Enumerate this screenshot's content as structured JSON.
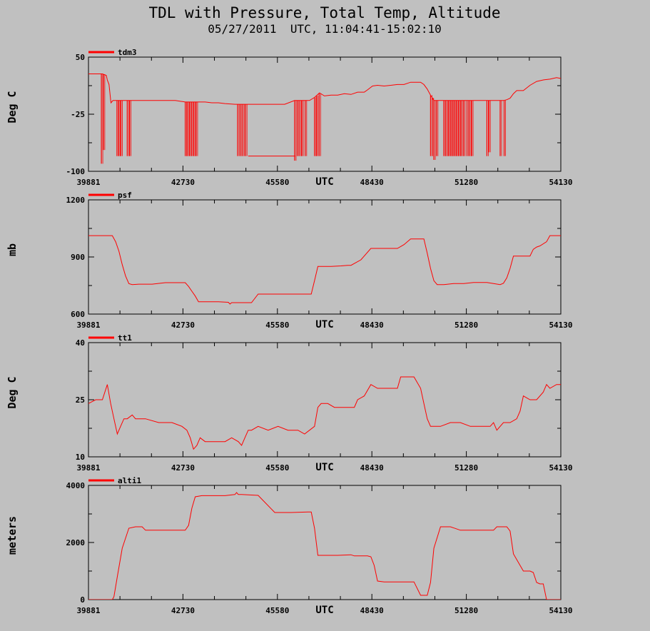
{
  "figure": {
    "title": "TDL with Pressure, Total Temp, Altitude",
    "subtitle": "05/27/2011  UTC, 11:04:41-15:02:10"
  },
  "chart_data": [
    {
      "type": "line",
      "series": [
        {
          "name": "tdm3",
          "color": "#ff0000",
          "x": [
            39881,
            40190,
            40300,
            40420,
            40450,
            40500,
            40560,
            40620,
            40700,
            40800,
            41000,
            41300,
            41600,
            41900,
            42200,
            42500,
            42800,
            43100,
            43400,
            43600,
            43800,
            44000,
            44300,
            44600,
            44900,
            45200,
            45500,
            45800,
            46100,
            46400,
            46550,
            46700,
            46850,
            47000,
            47200,
            47400,
            47600,
            47800,
            48000,
            48200,
            48300,
            48450,
            48600,
            48800,
            49000,
            49200,
            49400,
            49600,
            49900,
            50000,
            50100,
            50200,
            50300,
            50400,
            50600,
            50900,
            51200,
            51500,
            51800,
            52000,
            52100,
            52300,
            52400,
            52500,
            52600,
            52700,
            52800,
            53000,
            53200,
            53400,
            53600,
            53800,
            54000,
            54130
          ],
          "y": [
            28,
            28,
            28,
            26,
            20,
            14,
            -10,
            -7,
            -7,
            -7,
            -7,
            -7,
            -7,
            -7,
            -7,
            -7,
            -9,
            -9,
            -9,
            -10,
            -10,
            -11,
            -12,
            -12,
            -12,
            -12,
            -12,
            -12,
            -7,
            -7,
            -7,
            -3,
            3,
            -1,
            0,
            0,
            2,
            1,
            4,
            4,
            7,
            12,
            13,
            12,
            13,
            14,
            14,
            17,
            17,
            14,
            8,
            0,
            -7,
            -7,
            -7,
            -7,
            -7,
            -7,
            -7,
            -7,
            -7,
            -7,
            -7,
            -6,
            -4,
            2,
            6,
            6,
            13,
            18,
            20,
            21,
            23,
            22
          ]
        }
      ],
      "spikes": [
        {
          "x": 40270,
          "y": -90
        },
        {
          "x": 40330,
          "y": -72
        },
        {
          "x": 40740,
          "y": -80
        },
        {
          "x": 40800,
          "y": -80
        },
        {
          "x": 40860,
          "y": -80
        },
        {
          "x": 41050,
          "y": -80
        },
        {
          "x": 41120,
          "y": -80
        },
        {
          "x": 42800,
          "y": -80
        },
        {
          "x": 42860,
          "y": -80
        },
        {
          "x": 42930,
          "y": -80
        },
        {
          "x": 43000,
          "y": -80
        },
        {
          "x": 43060,
          "y": -80
        },
        {
          "x": 43130,
          "y": -80
        },
        {
          "x": 44380,
          "y": -80
        },
        {
          "x": 44460,
          "y": -80
        },
        {
          "x": 44540,
          "y": -80
        },
        {
          "x": 44620,
          "y": -80
        },
        {
          "x": 46100,
          "y": -86
        },
        {
          "x": 46180,
          "y": -80
        },
        {
          "x": 46260,
          "y": -80
        },
        {
          "x": 46320,
          "y": -80
        },
        {
          "x": 46420,
          "y": -80
        },
        {
          "x": 46700,
          "y": -80
        },
        {
          "x": 46760,
          "y": -80
        },
        {
          "x": 46840,
          "y": -80
        },
        {
          "x": 50200,
          "y": -80
        },
        {
          "x": 50250,
          "y": -80
        },
        {
          "x": 50300,
          "y": -85
        },
        {
          "x": 50380,
          "y": -80
        },
        {
          "x": 50600,
          "y": -80
        },
        {
          "x": 50650,
          "y": -80
        },
        {
          "x": 50700,
          "y": -80
        },
        {
          "x": 50760,
          "y": -80
        },
        {
          "x": 50820,
          "y": -80
        },
        {
          "x": 50880,
          "y": -80
        },
        {
          "x": 50940,
          "y": -80
        },
        {
          "x": 51000,
          "y": -80
        },
        {
          "x": 51060,
          "y": -80
        },
        {
          "x": 51120,
          "y": -80
        },
        {
          "x": 51200,
          "y": -80
        },
        {
          "x": 51300,
          "y": -80
        },
        {
          "x": 51380,
          "y": -80
        },
        {
          "x": 51440,
          "y": -80
        },
        {
          "x": 51900,
          "y": -80
        },
        {
          "x": 51960,
          "y": -75
        },
        {
          "x": 52300,
          "y": -80
        },
        {
          "x": 52420,
          "y": -80
        }
      ],
      "baseline": [
        {
          "x0": 44700,
          "x1": 46120,
          "y": -80
        }
      ],
      "ylabel": "Deg C",
      "xlabel": "UTC",
      "ylim": [
        -100,
        50
      ],
      "yticks": [
        "50",
        "-25",
        "-100"
      ],
      "xlim": [
        39881,
        54130
      ],
      "xticks": [
        "39881",
        "42730",
        "45580",
        "48430",
        "51280",
        "54130"
      ],
      "legend_placement": "top-left",
      "grid": false
    },
    {
      "type": "line",
      "series": [
        {
          "name": "psf",
          "color": "#ff0000",
          "x": [
            39881,
            40600,
            40700,
            40800,
            40900,
            41000,
            41100,
            41200,
            41400,
            41800,
            42200,
            42600,
            42800,
            42900,
            43000,
            43100,
            43200,
            43500,
            43800,
            44100,
            44150,
            44200,
            44500,
            44800,
            45000,
            45200,
            45500,
            45800,
            46200,
            46500,
            46600,
            46700,
            46800,
            46900,
            47200,
            47500,
            47700,
            47800,
            48100,
            48400,
            48500,
            48600,
            48800,
            49200,
            49400,
            49600,
            49700,
            50000,
            50100,
            50200,
            50300,
            50400,
            50600,
            50900,
            51200,
            51500,
            51800,
            51900,
            52100,
            52300,
            52400,
            52500,
            52600,
            52700,
            53200,
            53300,
            53400,
            53500,
            53700,
            53800,
            54130
          ],
          "y": [
            1012,
            1012,
            980,
            930,
            860,
            800,
            760,
            755,
            757,
            757,
            765,
            765,
            765,
            745,
            720,
            695,
            665,
            665,
            665,
            662,
            653,
            660,
            660,
            660,
            705,
            705,
            705,
            705,
            705,
            705,
            705,
            775,
            850,
            850,
            850,
            853,
            856,
            856,
            885,
            945,
            945,
            945,
            945,
            945,
            965,
            995,
            995,
            995,
            920,
            840,
            775,
            755,
            755,
            760,
            760,
            766,
            766,
            766,
            760,
            755,
            762,
            790,
            840,
            905,
            905,
            940,
            952,
            958,
            980,
            1012,
            1012
          ]
        }
      ],
      "ylabel": "mb",
      "xlabel": "UTC",
      "ylim": [
        600,
        1200
      ],
      "yticks": [
        "1200",
        "900",
        "600"
      ],
      "xlim": [
        39881,
        54130
      ],
      "xticks": [
        "39881",
        "42730",
        "45580",
        "48430",
        "51280",
        "54130"
      ],
      "legend_placement": "top-left",
      "grid": false
    },
    {
      "type": "line",
      "series": [
        {
          "name": "tt1",
          "color": "#ff0000",
          "x": [
            39881,
            40100,
            40300,
            40450,
            40550,
            40650,
            40750,
            40850,
            40950,
            41050,
            41200,
            41300,
            41400,
            41600,
            42000,
            42400,
            42700,
            42850,
            42950,
            43050,
            43150,
            43250,
            43400,
            43600,
            43800,
            44000,
            44200,
            44400,
            44500,
            44600,
            44700,
            44800,
            45000,
            45300,
            45600,
            45900,
            46200,
            46400,
            46700,
            46800,
            46900,
            47100,
            47300,
            47600,
            47900,
            48000,
            48200,
            48400,
            48600,
            48800,
            49000,
            49200,
            49300,
            49500,
            49700,
            49900,
            50000,
            50100,
            50200,
            50300,
            50500,
            50800,
            51100,
            51400,
            51700,
            52000,
            52100,
            52200,
            52400,
            52600,
            52800,
            52900,
            53000,
            53200,
            53400,
            53600,
            53700,
            53800,
            54000,
            54130
          ],
          "y": [
            24,
            25,
            25,
            29,
            24,
            20,
            16,
            18,
            20,
            20,
            21,
            20,
            20,
            20,
            19,
            19,
            18,
            17,
            15,
            12,
            13,
            15,
            14,
            14,
            14,
            14,
            15,
            14,
            13,
            15,
            17,
            17,
            18,
            17,
            18,
            17,
            17,
            16,
            18,
            23,
            24,
            24,
            23,
            23,
            23,
            25,
            26,
            29,
            28,
            28,
            28,
            28,
            31,
            31,
            31,
            28,
            24,
            20,
            18,
            18,
            18,
            19,
            19,
            18,
            18,
            18,
            19,
            17,
            19,
            19,
            20,
            22,
            26,
            25,
            25,
            27,
            29,
            28,
            29,
            29
          ]
        }
      ],
      "ylabel": "Deg C",
      "xlabel": "UTC",
      "ylim": [
        10,
        40
      ],
      "yticks": [
        "40",
        "25",
        "10"
      ],
      "xlim": [
        39881,
        54130
      ],
      "xticks": [
        "39881",
        "42730",
        "45580",
        "48430",
        "51280",
        "54130"
      ],
      "legend_placement": "top-left",
      "grid": false
    },
    {
      "type": "line",
      "series": [
        {
          "name": "alti1",
          "color": "#ff0000",
          "x": [
            39881,
            40600,
            40650,
            40750,
            40900,
            41100,
            41300,
            41500,
            41600,
            41900,
            42400,
            42800,
            42900,
            43000,
            43100,
            43300,
            43600,
            44000,
            44300,
            44350,
            44400,
            44500,
            45000,
            45500,
            46000,
            46500,
            46600,
            46700,
            46800,
            46900,
            47100,
            47400,
            47800,
            47900,
            47950,
            48000,
            48300,
            48400,
            48500,
            48600,
            48800,
            49200,
            49400,
            49700,
            49900,
            50000,
            50100,
            50200,
            50300,
            50500,
            50800,
            51100,
            51400,
            51700,
            52000,
            52100,
            52200,
            52400,
            52500,
            52600,
            52700,
            53000,
            53200,
            53300,
            53400,
            53500,
            53600,
            53700,
            54130
          ],
          "y": [
            0,
            0,
            100,
            800,
            1800,
            2500,
            2550,
            2550,
            2430,
            2430,
            2430,
            2430,
            2600,
            3200,
            3600,
            3640,
            3640,
            3640,
            3680,
            3750,
            3680,
            3680,
            3650,
            3050,
            3050,
            3070,
            3070,
            2500,
            1550,
            1550,
            1550,
            1550,
            1570,
            1530,
            1530,
            1530,
            1530,
            1500,
            1200,
            650,
            620,
            620,
            620,
            620,
            150,
            150,
            150,
            600,
            1800,
            2550,
            2550,
            2430,
            2430,
            2430,
            2430,
            2430,
            2550,
            2550,
            2550,
            2400,
            1600,
            1000,
            1000,
            950,
            600,
            550,
            550,
            0,
            0
          ]
        }
      ],
      "ylabel": "meters",
      "xlabel": "UTC",
      "ylim": [
        0,
        4000
      ],
      "yticks": [
        "4000",
        "2000",
        "0"
      ],
      "xlim": [
        39881,
        54130
      ],
      "xticks": [
        "39881",
        "42730",
        "45580",
        "48430",
        "51280",
        "54130"
      ],
      "legend_placement": "top-left",
      "grid": false
    }
  ]
}
